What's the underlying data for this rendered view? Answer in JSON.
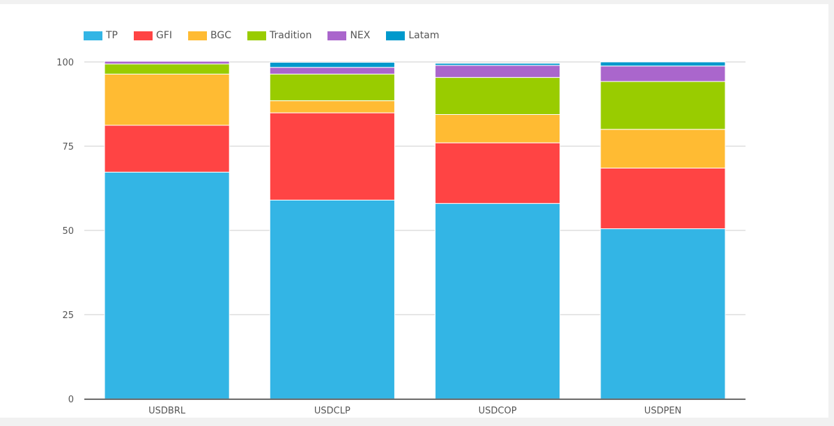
{
  "chart_data": {
    "type": "bar",
    "stacked": true,
    "categories": [
      "USDBRL",
      "USDCLP",
      "USDCOP",
      "USDPEN"
    ],
    "series": [
      {
        "name": "TP",
        "color": "#33b5e5",
        "values": [
          67.3,
          59.0,
          58.0,
          50.5
        ]
      },
      {
        "name": "GFI",
        "color": "#ff4444",
        "values": [
          13.9,
          25.9,
          18.0,
          18.0
        ]
      },
      {
        "name": "BGC",
        "color": "#ffbb33",
        "values": [
          15.2,
          3.6,
          8.4,
          11.5
        ]
      },
      {
        "name": "Tradition",
        "color": "#99cc00",
        "values": [
          3.0,
          7.9,
          11.0,
          14.2
        ]
      },
      {
        "name": "NEX",
        "color": "#aa66cc",
        "values": [
          0.8,
          2.0,
          3.6,
          4.6
        ]
      },
      {
        "name": "Latam",
        "color": "#0099cc",
        "values": [
          0,
          1.5,
          0.6,
          1.2
        ]
      }
    ],
    "ylim": [
      0,
      100
    ],
    "yticks": [
      0,
      25,
      50,
      75,
      100
    ],
    "grid": true,
    "legend": "top-left"
  }
}
